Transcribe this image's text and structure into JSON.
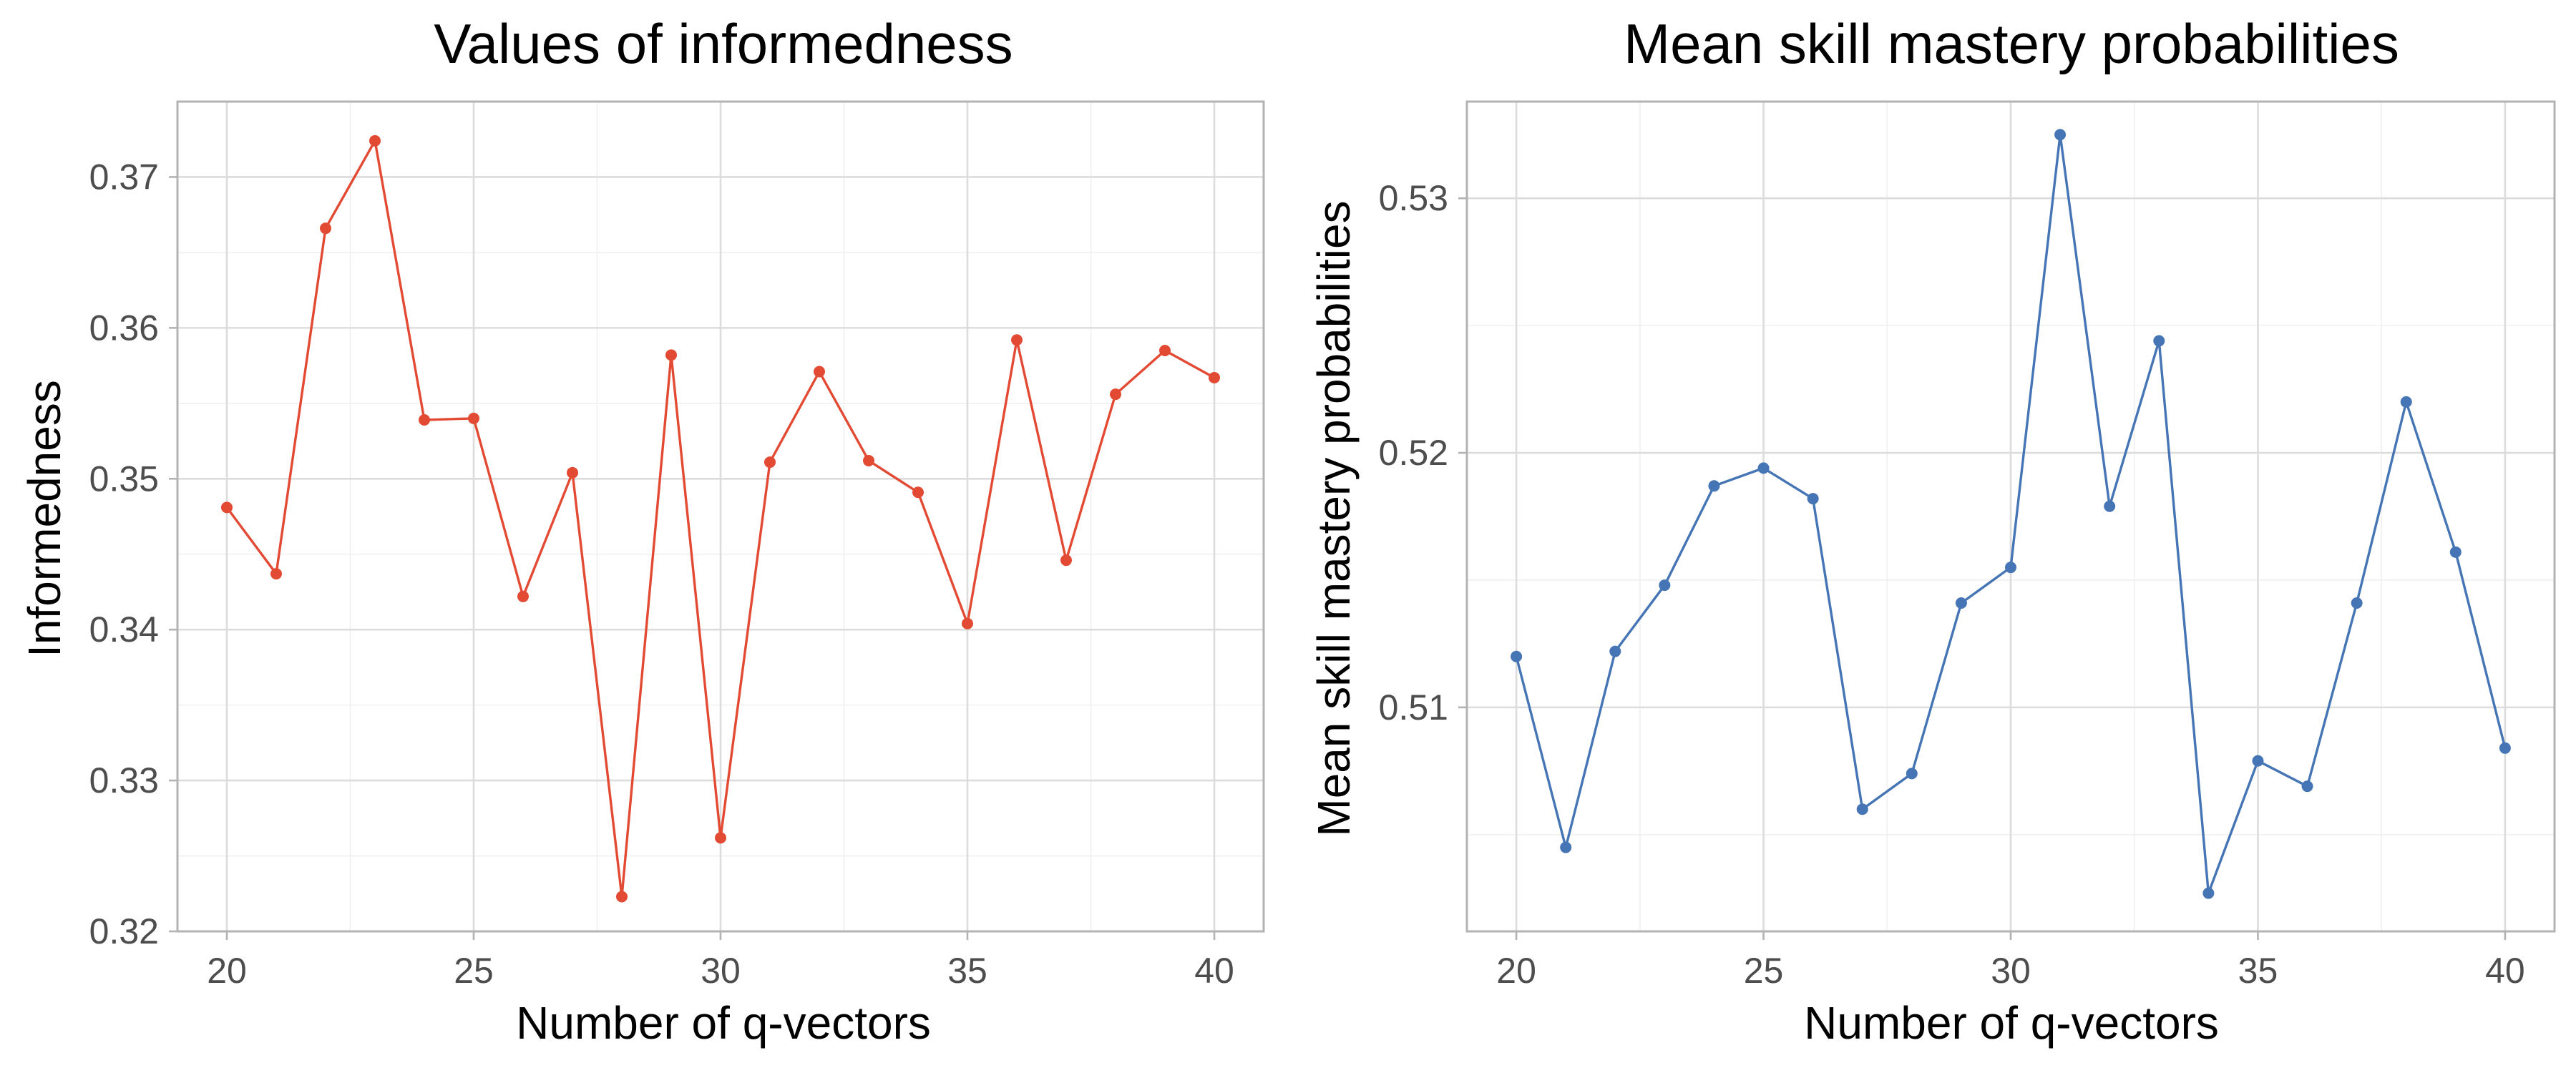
{
  "chart_data": [
    {
      "type": "line",
      "title": "Values of informedness",
      "xlabel": "Number of q-vectors",
      "ylabel": "Informedness",
      "color": "#e34a33",
      "x": [
        20,
        21,
        22,
        23,
        24,
        25,
        26,
        27,
        28,
        29,
        30,
        31,
        32,
        33,
        34,
        35,
        36,
        37,
        38,
        39,
        40
      ],
      "values": [
        0.3481,
        0.3437,
        0.3666,
        0.3724,
        0.3539,
        0.354,
        0.3422,
        0.3504,
        0.3223,
        0.3582,
        0.3262,
        0.3511,
        0.3571,
        0.3512,
        0.3491,
        0.3404,
        0.3592,
        0.3446,
        0.3556,
        0.3585,
        0.3567
      ],
      "xlim": [
        19,
        41
      ],
      "ylim": [
        0.32,
        0.375
      ],
      "xticks": [
        20,
        25,
        30,
        35,
        40
      ],
      "yticks": [
        0.32,
        0.33,
        0.34,
        0.35,
        0.36,
        0.37
      ],
      "xtick_labels": [
        "20",
        "25",
        "30",
        "35",
        "40"
      ],
      "ytick_labels": [
        "0.32",
        "0.33",
        "0.34",
        "0.35",
        "0.36",
        "0.37"
      ],
      "grid": true
    },
    {
      "type": "line",
      "title": "Mean skill mastery probabilities",
      "xlabel": "Number of q-vectors",
      "ylabel": "Mean skill mastery probabilities",
      "color": "#4575b4",
      "x": [
        20,
        21,
        22,
        23,
        24,
        25,
        26,
        27,
        28,
        29,
        30,
        31,
        32,
        33,
        34,
        35,
        36,
        37,
        38,
        39,
        40
      ],
      "values": [
        0.512,
        0.5045,
        0.5122,
        0.5148,
        0.5187,
        0.5194,
        0.5182,
        0.506,
        0.5074,
        0.5141,
        0.5155,
        0.5325,
        0.5179,
        0.5244,
        0.5027,
        0.5079,
        0.5069,
        0.5141,
        0.522,
        0.5161,
        0.5084
      ],
      "xlim": [
        19,
        41
      ],
      "ylim": [
        0.5012,
        0.5338
      ],
      "xticks": [
        20,
        25,
        30,
        35,
        40
      ],
      "yticks": [
        0.51,
        0.52,
        0.53
      ],
      "xtick_labels": [
        "20",
        "25",
        "30",
        "35",
        "40"
      ],
      "ytick_labels": [
        "0.51",
        "0.52",
        "0.53"
      ],
      "grid": true
    }
  ]
}
